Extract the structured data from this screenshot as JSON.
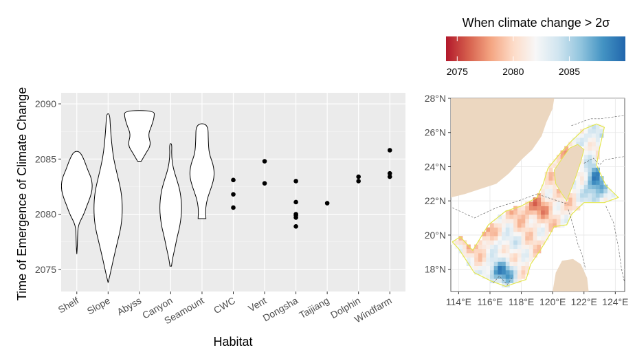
{
  "chart_data": [
    {
      "type": "violin",
      "xlabel": "Habitat",
      "ylabel": "Time of Emergence of Climate Change",
      "ylim": [
        2073,
        2091
      ],
      "yticks": [
        2075,
        2080,
        2085,
        2090
      ],
      "grid": true,
      "background": "#ebebeb",
      "categories": [
        "Shelf",
        "Slope",
        "Abyss",
        "Canyon",
        "Seamount",
        "CWC",
        "Vent",
        "Dongsha",
        "Taijiang",
        "Dolphin",
        "Windfarm"
      ],
      "violins": [
        {
          "category": "Shelf",
          "profile": [
            [
              2076.4,
              0.0
            ],
            [
              2077.0,
              0.03
            ],
            [
              2078.0,
              0.05
            ],
            [
              2079.0,
              0.08
            ],
            [
              2080.0,
              0.45
            ],
            [
              2080.8,
              0.65
            ],
            [
              2081.5,
              0.85
            ],
            [
              2082.3,
              1.0
            ],
            [
              2083.2,
              0.95
            ],
            [
              2084.0,
              0.7
            ],
            [
              2085.0,
              0.45
            ],
            [
              2085.7,
              0.18
            ]
          ]
        },
        {
          "category": "Slope",
          "profile": [
            [
              2073.8,
              0.0
            ],
            [
              2074.5,
              0.12
            ],
            [
              2076.0,
              0.35
            ],
            [
              2077.5,
              0.6
            ],
            [
              2079.0,
              0.85
            ],
            [
              2080.5,
              0.92
            ],
            [
              2082.0,
              0.85
            ],
            [
              2083.5,
              0.6
            ],
            [
              2085.0,
              0.35
            ],
            [
              2086.5,
              0.22
            ],
            [
              2088.0,
              0.14
            ],
            [
              2089.1,
              0.1
            ]
          ]
        },
        {
          "category": "Abyss",
          "profile": [
            [
              2084.8,
              0.12
            ],
            [
              2085.5,
              0.4
            ],
            [
              2086.3,
              0.75
            ],
            [
              2087.2,
              0.55
            ],
            [
              2088.0,
              0.78
            ],
            [
              2088.8,
              0.95
            ],
            [
              2089.4,
              0.95
            ]
          ]
        },
        {
          "category": "Canyon",
          "profile": [
            [
              2075.3,
              0.05
            ],
            [
              2076.0,
              0.12
            ],
            [
              2077.0,
              0.28
            ],
            [
              2078.0,
              0.42
            ],
            [
              2079.0,
              0.6
            ],
            [
              2080.5,
              0.72
            ],
            [
              2082.0,
              0.62
            ],
            [
              2083.0,
              0.42
            ],
            [
              2084.2,
              0.15
            ],
            [
              2085.3,
              0.05
            ],
            [
              2086.4,
              0.08
            ]
          ]
        },
        {
          "category": "Seamount",
          "profile": [
            [
              2079.6,
              0.25
            ],
            [
              2080.5,
              0.22
            ],
            [
              2081.5,
              0.35
            ],
            [
              2082.5,
              0.62
            ],
            [
              2083.5,
              0.8
            ],
            [
              2084.5,
              0.72
            ],
            [
              2085.5,
              0.45
            ],
            [
              2086.7,
              0.4
            ],
            [
              2088.2,
              0.38
            ]
          ]
        }
      ],
      "points": [
        {
          "category": "CWC",
          "values": [
            2080.6,
            2081.8,
            2083.1
          ]
        },
        {
          "category": "Vent",
          "values": [
            2082.8,
            2084.8
          ]
        },
        {
          "category": "Dongsha",
          "values": [
            2078.9,
            2079.7,
            2079.9,
            2080.0,
            2081.1,
            2083.0
          ]
        },
        {
          "category": "Taijiang",
          "values": [
            2081.0
          ]
        },
        {
          "category": "Dolphin",
          "values": [
            2083.0,
            2083.4
          ]
        },
        {
          "category": "Windfarm",
          "values": [
            2083.4,
            2083.7,
            2085.8
          ]
        }
      ]
    },
    {
      "type": "heatmap",
      "legend": {
        "title": "When climate change > 2σ",
        "ticks": [
          2075,
          2080,
          2085
        ],
        "range": [
          2074,
          2090
        ],
        "colors": [
          "#b2182b",
          "#d6604d",
          "#f4a582",
          "#fddbc7",
          "#f7f7f7",
          "#d1e5f0",
          "#92c5de",
          "#4393c3",
          "#2166ac"
        ]
      },
      "xticks": [
        "114°E",
        "116°E",
        "118°E",
        "120°E",
        "122°E",
        "124°E"
      ],
      "yticks": [
        "18°N",
        "20°N",
        "22°N",
        "24°N",
        "26°N",
        "28°N"
      ],
      "lon_range": [
        113.5,
        124.6
      ],
      "lat_range": [
        16.7,
        28.0
      ],
      "land_color": "#ecd7c0",
      "outline_color": "#e3e64d",
      "grid": true
    }
  ]
}
